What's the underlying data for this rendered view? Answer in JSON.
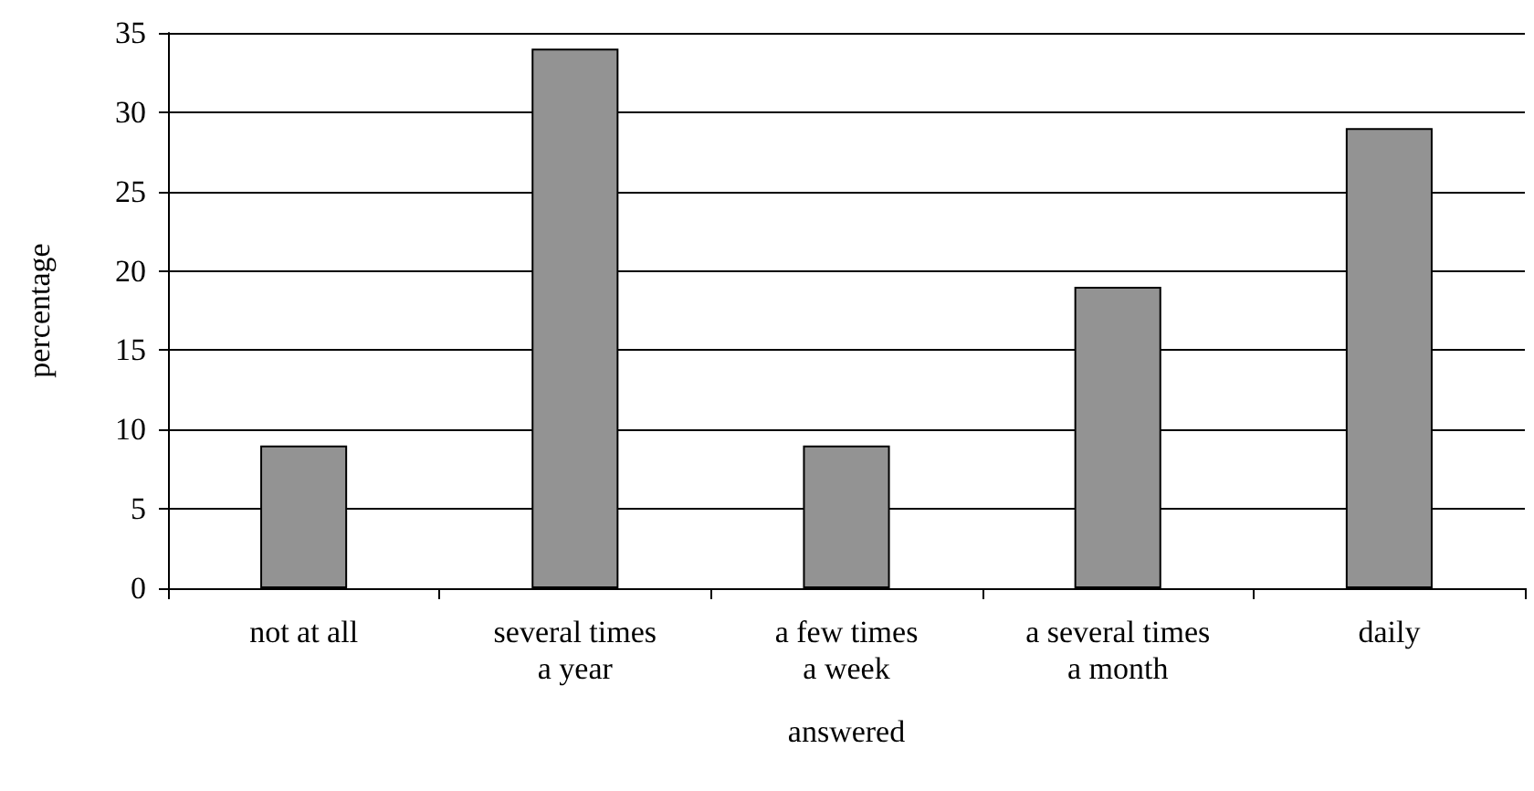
{
  "chart_data": {
    "type": "bar",
    "xlabel": "answered",
    "ylabel": "percentage",
    "categories": [
      "not at all",
      "several times\na year",
      "a few times\na week",
      "a several times\na month",
      "daily"
    ],
    "values": [
      9,
      34,
      9,
      19,
      29
    ],
    "color": "#939393",
    "ylim": [
      0,
      35
    ],
    "yticks": [
      0,
      5,
      10,
      15,
      20,
      25,
      30,
      35
    ],
    "grid": "y"
  }
}
